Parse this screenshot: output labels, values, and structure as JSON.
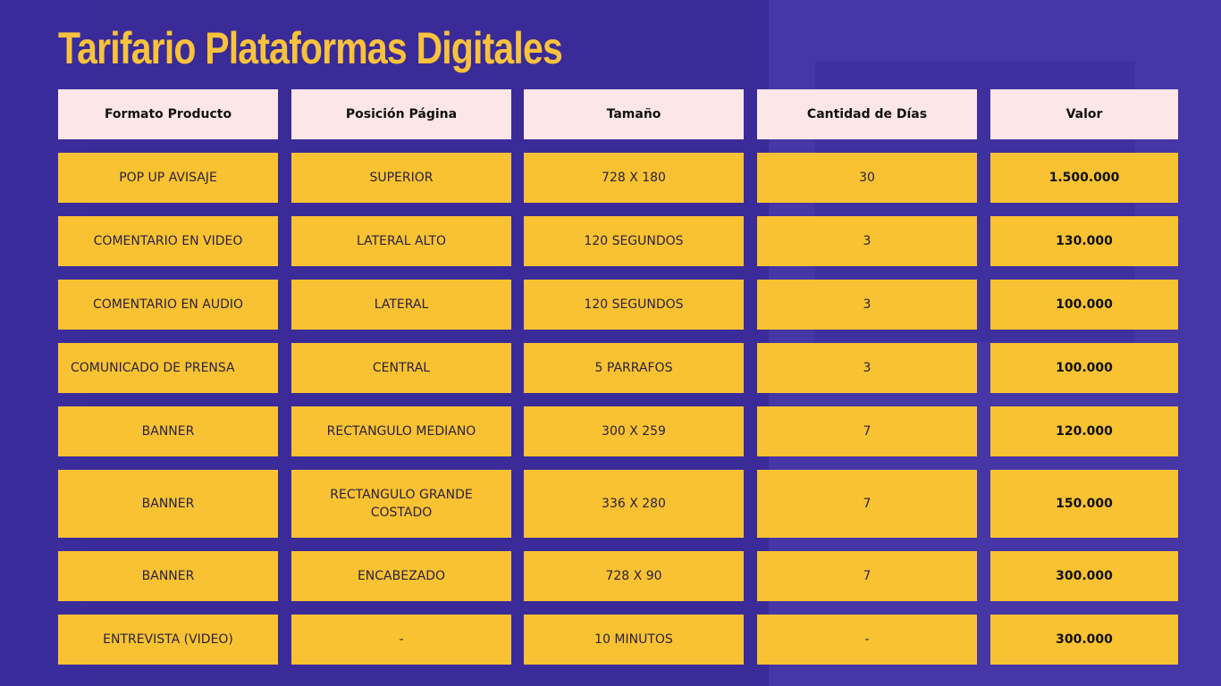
{
  "title": "Tarifario Plataformas Digitales",
  "colors": {
    "background": "#3b2c9c",
    "title": "#f9c23c",
    "header_cell": "#fde6e8",
    "body_cell": "#f8c232"
  },
  "table": {
    "headers": [
      "Formato Producto",
      "Posición Página",
      "Tamaño",
      "Cantidad de Días",
      "Valor"
    ],
    "rows": [
      [
        "POP UP AVISAJE",
        "SUPERIOR",
        "728 X 180",
        "30",
        "1.500.000"
      ],
      [
        "COMENTARIO EN VIDEO",
        "LATERAL ALTO",
        "120 SEGUNDOS",
        "3",
        "130.000"
      ],
      [
        "COMENTARIO EN AUDIO",
        "LATERAL",
        "120 SEGUNDOS",
        "3",
        "100.000"
      ],
      [
        "COMUNICADO DE PRENSA",
        "CENTRAL",
        "5 PARRAFOS",
        "3",
        "100.000"
      ],
      [
        "BANNER",
        "RECTANGULO MEDIANO",
        "300 X 259",
        "7",
        "120.000"
      ],
      [
        "BANNER",
        "RECTANGULO GRANDE COSTADO",
        "336 X 280",
        "7",
        "150.000"
      ],
      [
        "BANNER",
        "ENCABEZADO",
        "728 X 90",
        "7",
        "300.000"
      ],
      [
        "ENTREVISTA (VIDEO)",
        "-",
        "10 MINUTOS",
        "-",
        "300.000"
      ]
    ]
  }
}
